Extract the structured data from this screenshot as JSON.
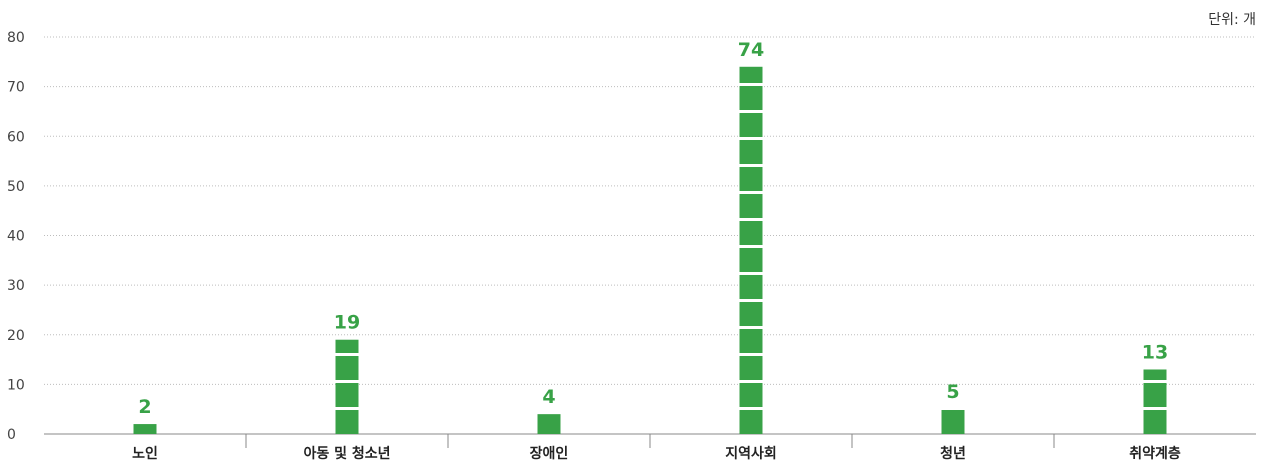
{
  "chart_data": {
    "type": "bar",
    "unit_label": "단위: 개",
    "categories": [
      "노인",
      "아동 및 청소년",
      "장애인",
      "지역사회",
      "청년",
      "취약계층"
    ],
    "values": [
      2,
      19,
      4,
      74,
      5,
      13
    ],
    "ylim": [
      0,
      80
    ],
    "yticks": [
      0,
      10,
      20,
      30,
      40,
      50,
      60,
      70,
      80
    ],
    "grid": true,
    "legend": "none",
    "colors": {
      "bar": "#38A247",
      "value_label": "#38A247",
      "grid": "#bdbdbd",
      "axis": "#888888"
    }
  }
}
